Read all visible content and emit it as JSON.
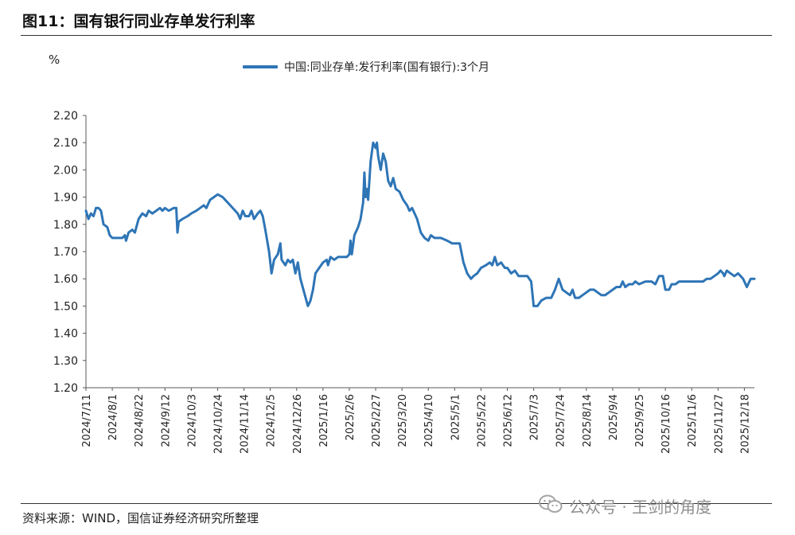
{
  "page": {
    "title": "图11：国有银行同业存单发行利率",
    "source": "资料来源：WIND，国信证券经济研究所整理",
    "watermark": "公众号 · 王剑的角度"
  },
  "chart_data": {
    "type": "line",
    "unit_label": "%",
    "ylim": [
      1.2,
      2.2
    ],
    "y_ticks": [
      "2.20",
      "2.10",
      "2.00",
      "1.90",
      "1.80",
      "1.70",
      "1.60",
      "1.50",
      "1.40",
      "1.30",
      "1.20"
    ],
    "x_ticks": [
      "2024/7/11",
      "2024/8/1",
      "2024/8/22",
      "2024/9/12",
      "2024/10/3",
      "2024/10/24",
      "2024/11/14",
      "2024/12/5",
      "2024/12/26",
      "2025/1/16",
      "2025/2/6",
      "2025/2/27",
      "2025/3/20",
      "2025/4/10",
      "2025/5/1",
      "2025/5/22",
      "2025/6/12",
      "2025/7/3",
      "2025/7/24",
      "2025/8/14",
      "2025/9/4",
      "2025/9/25",
      "2025/10/16",
      "2025/11/6",
      "2025/11/27",
      "2025/12/18"
    ],
    "x_range": [
      "2024/7/11",
      "2025/12/26"
    ],
    "grid": false,
    "legend": "top-center",
    "color": "#2e75b6",
    "series": [
      {
        "name": "中国:同业存单:发行利率(国有银行):3个月",
        "points": [
          [
            "2024/7/11",
            1.85
          ],
          [
            "2024/7/13",
            1.82
          ],
          [
            "2024/7/15",
            1.84
          ],
          [
            "2024/7/17",
            1.83
          ],
          [
            "2024/7/19",
            1.86
          ],
          [
            "2024/7/21",
            1.86
          ],
          [
            "2024/7/23",
            1.85
          ],
          [
            "2024/7/25",
            1.8
          ],
          [
            "2024/7/28",
            1.79
          ],
          [
            "2024/7/30",
            1.76
          ],
          [
            "2024/8/1",
            1.75
          ],
          [
            "2024/8/5",
            1.75
          ],
          [
            "2024/8/9",
            1.75
          ],
          [
            "2024/8/11",
            1.76
          ],
          [
            "2024/8/12",
            1.74
          ],
          [
            "2024/8/14",
            1.77
          ],
          [
            "2024/8/17",
            1.78
          ],
          [
            "2024/8/19",
            1.77
          ],
          [
            "2024/8/22",
            1.82
          ],
          [
            "2024/8/25",
            1.84
          ],
          [
            "2024/8/28",
            1.83
          ],
          [
            "2024/8/30",
            1.85
          ],
          [
            "2024/9/2",
            1.84
          ],
          [
            "2024/9/5",
            1.85
          ],
          [
            "2024/9/8",
            1.86
          ],
          [
            "2024/9/10",
            1.85
          ],
          [
            "2024/9/12",
            1.86
          ],
          [
            "2024/9/15",
            1.85
          ],
          [
            "2024/9/19",
            1.86
          ],
          [
            "2024/9/21",
            1.86
          ],
          [
            "2024/9/22",
            1.77
          ],
          [
            "2024/9/23",
            1.81
          ],
          [
            "2024/9/26",
            1.82
          ],
          [
            "2024/9/30",
            1.83
          ],
          [
            "2024/10/3",
            1.84
          ],
          [
            "2024/10/7",
            1.85
          ],
          [
            "2024/10/10",
            1.86
          ],
          [
            "2024/10/13",
            1.87
          ],
          [
            "2024/10/15",
            1.86
          ],
          [
            "2024/10/18",
            1.89
          ],
          [
            "2024/10/21",
            1.9
          ],
          [
            "2024/10/24",
            1.91
          ],
          [
            "2024/10/28",
            1.9
          ],
          [
            "2024/11/1",
            1.88
          ],
          [
            "2024/11/5",
            1.86
          ],
          [
            "2024/11/9",
            1.84
          ],
          [
            "2024/11/11",
            1.82
          ],
          [
            "2024/11/13",
            1.85
          ],
          [
            "2024/11/15",
            1.83
          ],
          [
            "2024/11/18",
            1.83
          ],
          [
            "2024/11/20",
            1.85
          ],
          [
            "2024/11/22",
            1.82
          ],
          [
            "2024/11/25",
            1.84
          ],
          [
            "2024/11/27",
            1.85
          ],
          [
            "2024/11/29",
            1.83
          ],
          [
            "2024/12/1",
            1.78
          ],
          [
            "2024/12/4",
            1.7
          ],
          [
            "2024/12/6",
            1.62
          ],
          [
            "2024/12/8",
            1.67
          ],
          [
            "2024/12/11",
            1.69
          ],
          [
            "2024/12/13",
            1.73
          ],
          [
            "2024/12/14",
            1.67
          ],
          [
            "2024/12/17",
            1.65
          ],
          [
            "2024/12/19",
            1.67
          ],
          [
            "2024/12/21",
            1.66
          ],
          [
            "2024/12/23",
            1.67
          ],
          [
            "2024/12/25",
            1.62
          ],
          [
            "2024/12/27",
            1.66
          ],
          [
            "2024/12/29",
            1.6
          ],
          [
            "2025/1/1",
            1.55
          ],
          [
            "2025/1/4",
            1.5
          ],
          [
            "2025/1/6",
            1.52
          ],
          [
            "2025/1/8",
            1.56
          ],
          [
            "2025/1/10",
            1.62
          ],
          [
            "2025/1/13",
            1.64
          ],
          [
            "2025/1/16",
            1.66
          ],
          [
            "2025/1/19",
            1.67
          ],
          [
            "2025/1/20",
            1.65
          ],
          [
            "2025/1/22",
            1.68
          ],
          [
            "2025/1/25",
            1.67
          ],
          [
            "2025/1/28",
            1.68
          ],
          [
            "2025/2/1",
            1.68
          ],
          [
            "2025/2/4",
            1.68
          ],
          [
            "2025/2/6",
            1.69
          ],
          [
            "2025/2/7",
            1.74
          ],
          [
            "2025/2/8",
            1.69
          ],
          [
            "2025/2/10",
            1.76
          ],
          [
            "2025/2/13",
            1.79
          ],
          [
            "2025/2/15",
            1.82
          ],
          [
            "2025/2/17",
            1.88
          ],
          [
            "2025/2/18",
            1.99
          ],
          [
            "2025/2/19",
            1.9
          ],
          [
            "2025/2/20",
            1.93
          ],
          [
            "2025/2/21",
            1.89
          ],
          [
            "2025/2/23",
            2.03
          ],
          [
            "2025/2/25",
            2.1
          ],
          [
            "2025/2/27",
            2.08
          ],
          [
            "2025/2/28",
            2.1
          ],
          [
            "2025/3/1",
            2.05
          ],
          [
            "2025/3/3",
            2.0
          ],
          [
            "2025/3/5",
            2.06
          ],
          [
            "2025/3/7",
            2.03
          ],
          [
            "2025/3/9",
            1.96
          ],
          [
            "2025/3/11",
            1.94
          ],
          [
            "2025/3/13",
            1.97
          ],
          [
            "2025/3/15",
            1.93
          ],
          [
            "2025/3/18",
            1.92
          ],
          [
            "2025/3/21",
            1.89
          ],
          [
            "2025/3/24",
            1.87
          ],
          [
            "2025/3/26",
            1.85
          ],
          [
            "2025/3/28",
            1.86
          ],
          [
            "2025/4/1",
            1.82
          ],
          [
            "2025/4/4",
            1.77
          ],
          [
            "2025/4/7",
            1.75
          ],
          [
            "2025/4/10",
            1.74
          ],
          [
            "2025/4/12",
            1.76
          ],
          [
            "2025/4/15",
            1.75
          ],
          [
            "2025/4/20",
            1.75
          ],
          [
            "2025/4/25",
            1.74
          ],
          [
            "2025/4/29",
            1.73
          ],
          [
            "2025/5/1",
            1.73
          ],
          [
            "2025/5/5",
            1.73
          ],
          [
            "2025/5/8",
            1.66
          ],
          [
            "2025/5/11",
            1.62
          ],
          [
            "2025/5/14",
            1.6
          ],
          [
            "2025/5/16",
            1.61
          ],
          [
            "2025/5/19",
            1.62
          ],
          [
            "2025/5/22",
            1.64
          ],
          [
            "2025/5/26",
            1.65
          ],
          [
            "2025/5/29",
            1.66
          ],
          [
            "2025/5/31",
            1.65
          ],
          [
            "2025/6/2",
            1.68
          ],
          [
            "2025/6/4",
            1.65
          ],
          [
            "2025/6/7",
            1.66
          ],
          [
            "2025/6/10",
            1.64
          ],
          [
            "2025/6/12",
            1.64
          ],
          [
            "2025/6/15",
            1.62
          ],
          [
            "2025/6/18",
            1.63
          ],
          [
            "2025/6/21",
            1.61
          ],
          [
            "2025/6/25",
            1.61
          ],
          [
            "2025/6/28",
            1.61
          ],
          [
            "2025/7/1",
            1.59
          ],
          [
            "2025/7/3",
            1.5
          ],
          [
            "2025/7/6",
            1.5
          ],
          [
            "2025/7/9",
            1.52
          ],
          [
            "2025/7/13",
            1.53
          ],
          [
            "2025/7/17",
            1.53
          ],
          [
            "2025/7/20",
            1.56
          ],
          [
            "2025/7/23",
            1.6
          ],
          [
            "2025/7/26",
            1.56
          ],
          [
            "2025/7/29",
            1.55
          ],
          [
            "2025/8/1",
            1.54
          ],
          [
            "2025/8/3",
            1.56
          ],
          [
            "2025/8/5",
            1.53
          ],
          [
            "2025/8/8",
            1.53
          ],
          [
            "2025/8/11",
            1.54
          ],
          [
            "2025/8/14",
            1.55
          ],
          [
            "2025/8/17",
            1.56
          ],
          [
            "2025/8/20",
            1.56
          ],
          [
            "2025/8/23",
            1.55
          ],
          [
            "2025/8/26",
            1.54
          ],
          [
            "2025/8/29",
            1.54
          ],
          [
            "2025/9/1",
            1.55
          ],
          [
            "2025/9/4",
            1.56
          ],
          [
            "2025/9/7",
            1.57
          ],
          [
            "2025/9/10",
            1.57
          ],
          [
            "2025/9/12",
            1.59
          ],
          [
            "2025/9/14",
            1.57
          ],
          [
            "2025/9/17",
            1.58
          ],
          [
            "2025/9/20",
            1.58
          ],
          [
            "2025/9/22",
            1.59
          ],
          [
            "2025/9/25",
            1.58
          ],
          [
            "2025/9/30",
            1.59
          ],
          [
            "2025/10/5",
            1.59
          ],
          [
            "2025/10/8",
            1.58
          ],
          [
            "2025/10/11",
            1.61
          ],
          [
            "2025/10/14",
            1.61
          ],
          [
            "2025/10/16",
            1.56
          ],
          [
            "2025/10/19",
            1.56
          ],
          [
            "2025/10/21",
            1.58
          ],
          [
            "2025/10/24",
            1.58
          ],
          [
            "2025/10/27",
            1.59
          ],
          [
            "2025/10/31",
            1.59
          ],
          [
            "2025/11/5",
            1.59
          ],
          [
            "2025/11/10",
            1.59
          ],
          [
            "2025/11/15",
            1.59
          ],
          [
            "2025/11/18",
            1.6
          ],
          [
            "2025/11/21",
            1.6
          ],
          [
            "2025/11/24",
            1.61
          ],
          [
            "2025/11/27",
            1.62
          ],
          [
            "2025/11/29",
            1.63
          ],
          [
            "2025/12/1",
            1.62
          ],
          [
            "2025/12/2",
            1.61
          ],
          [
            "2025/12/4",
            1.63
          ],
          [
            "2025/12/7",
            1.62
          ],
          [
            "2025/12/10",
            1.61
          ],
          [
            "2025/12/13",
            1.62
          ],
          [
            "2025/12/15",
            1.61
          ],
          [
            "2025/12/17",
            1.6
          ],
          [
            "2025/12/20",
            1.57
          ],
          [
            "2025/12/23",
            1.6
          ],
          [
            "2025/12/26",
            1.6
          ]
        ]
      }
    ]
  }
}
